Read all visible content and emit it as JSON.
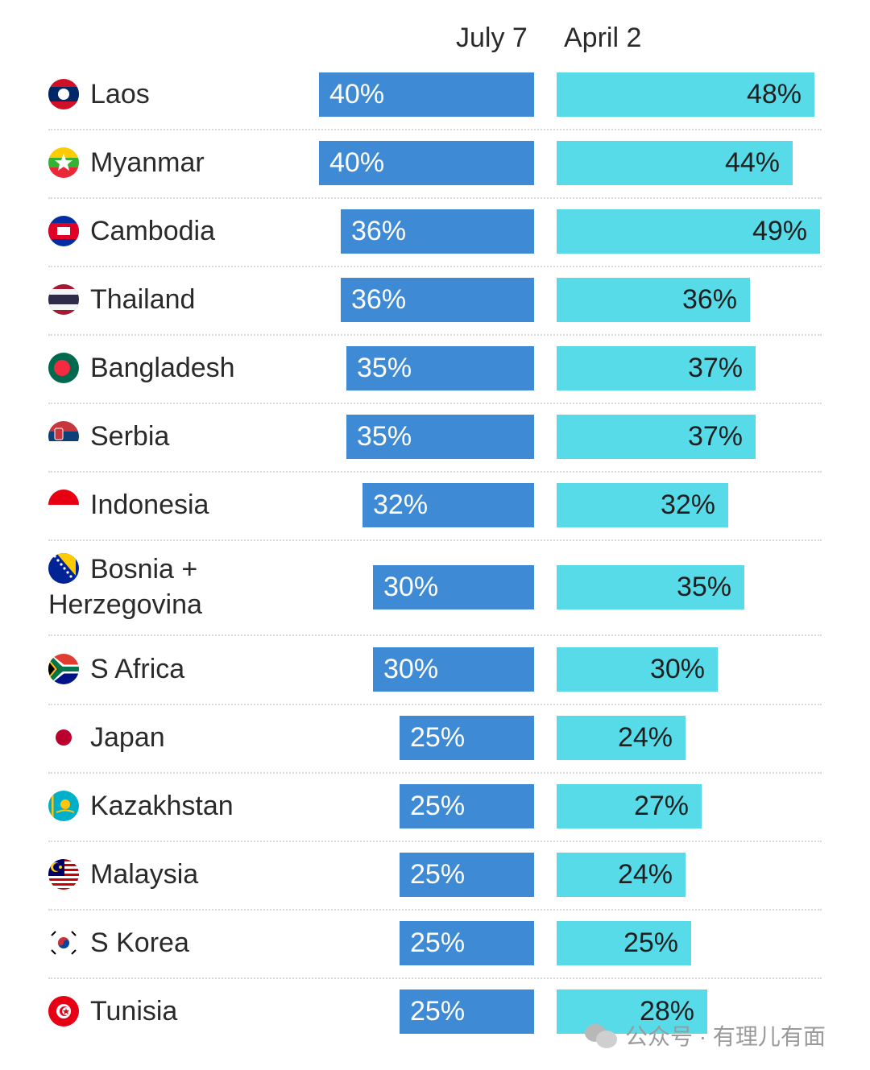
{
  "columns": {
    "july_label": "July 7",
    "april_label": "April 2"
  },
  "colors": {
    "july_bar": "#3f8ad4",
    "april_bar": "#57dbe9",
    "divider": "#d9d9d9",
    "text": "#2a2a2a"
  },
  "watermark": {
    "text": "公众号 · 有理儿有面",
    "icon": "wechat-icon"
  },
  "chart_data": {
    "type": "bar",
    "orientation": "horizontal",
    "value_unit": "%",
    "xlim": [
      0,
      50
    ],
    "categories": [
      "Laos",
      "Myanmar",
      "Cambodia",
      "Thailand",
      "Bangladesh",
      "Serbia",
      "Indonesia",
      "Bosnia + Herzegovina",
      "S Africa",
      "Japan",
      "Kazakhstan",
      "Malaysia",
      "S Korea",
      "Tunisia"
    ],
    "series": [
      {
        "name": "July 7",
        "values": [
          40,
          40,
          36,
          36,
          35,
          35,
          32,
          30,
          30,
          25,
          25,
          25,
          25,
          25
        ],
        "labels": [
          "40%",
          "40%",
          "36%",
          "36%",
          "35%",
          "35%",
          "32%",
          "30%",
          "30%",
          "25%",
          "25%",
          "25%",
          "25%",
          "25%"
        ]
      },
      {
        "name": "April 2",
        "values": [
          48,
          44,
          49,
          36,
          37,
          37,
          32,
          35,
          30,
          24,
          27,
          24,
          25,
          28
        ],
        "labels": [
          "48%",
          "44%",
          "49%",
          "36%",
          "37%",
          "37%",
          "32%",
          "35%",
          "30%",
          "24%",
          "27%",
          "24%",
          "25%",
          "28%"
        ]
      }
    ],
    "flags": [
      "laos-flag-icon",
      "myanmar-flag-icon",
      "cambodia-flag-icon",
      "thailand-flag-icon",
      "bangladesh-flag-icon",
      "serbia-flag-icon",
      "indonesia-flag-icon",
      "bosnia-flag-icon",
      "south-africa-flag-icon",
      "japan-flag-icon",
      "kazakhstan-flag-icon",
      "malaysia-flag-icon",
      "south-korea-flag-icon",
      "tunisia-flag-icon"
    ]
  }
}
